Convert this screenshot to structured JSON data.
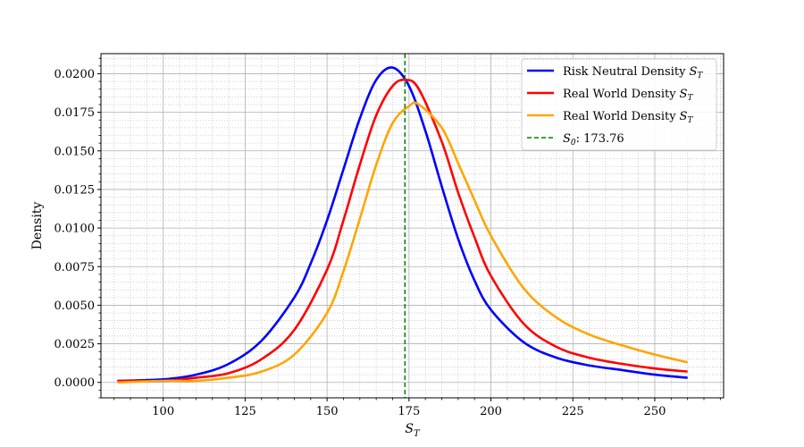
{
  "chart_data": {
    "type": "line",
    "title": "",
    "xlabel": "S",
    "xlabel_sub": "T",
    "ylabel": "Density",
    "xlim": [
      81,
      271
    ],
    "ylim": [
      -0.001,
      0.0213
    ],
    "xticks": [
      100,
      125,
      150,
      175,
      200,
      225,
      250
    ],
    "yticks": [
      0.0,
      0.0025,
      0.005,
      0.0075,
      0.01,
      0.0125,
      0.015,
      0.0175,
      0.02
    ],
    "ytick_labels": [
      "0.0000",
      "0.0025",
      "0.0050",
      "0.0075",
      "0.0100",
      "0.0125",
      "0.0150",
      "0.0175",
      "0.0200"
    ],
    "grid": true,
    "legend_position": "top-right",
    "series": [
      {
        "name": "Risk Neutral Density",
        "name_sub": "T",
        "color": "#0000ff",
        "x": [
          86,
          100,
          110,
          120,
          130,
          140,
          145,
          150,
          155,
          160,
          165,
          170,
          175,
          180,
          185,
          190,
          195,
          200,
          210,
          220,
          230,
          240,
          250,
          260
        ],
        "y": [
          0.0001,
          0.0002,
          0.0005,
          0.0012,
          0.0027,
          0.0055,
          0.0077,
          0.0105,
          0.0138,
          0.0171,
          0.0196,
          0.0204,
          0.0192,
          0.0163,
          0.0127,
          0.0093,
          0.0066,
          0.0047,
          0.0026,
          0.0016,
          0.0011,
          0.0008,
          0.0005,
          0.0003
        ]
      },
      {
        "name": "Real World Density",
        "name_sub": "T",
        "color": "#ff0000",
        "x": [
          86,
          100,
          110,
          120,
          130,
          140,
          150,
          155,
          160,
          165,
          170,
          174,
          178,
          185,
          190,
          195,
          200,
          210,
          220,
          230,
          240,
          250,
          260
        ],
        "y": [
          0.0001,
          0.0001,
          0.0003,
          0.0006,
          0.0015,
          0.0034,
          0.0073,
          0.0105,
          0.0141,
          0.0173,
          0.0192,
          0.0196,
          0.019,
          0.0156,
          0.0123,
          0.0094,
          0.0069,
          0.0038,
          0.0023,
          0.0016,
          0.0012,
          0.0009,
          0.0007
        ]
      },
      {
        "name": "Real World Density",
        "name_sub": "T",
        "color": "#ffa500",
        "x": [
          86,
          100,
          110,
          120,
          130,
          140,
          150,
          155,
          160,
          165,
          170,
          175,
          178,
          185,
          190,
          195,
          200,
          210,
          220,
          230,
          240,
          250,
          260
        ],
        "y": [
          0.0,
          0.0001,
          0.0001,
          0.0003,
          0.0007,
          0.0018,
          0.0045,
          0.0072,
          0.0106,
          0.0141,
          0.0168,
          0.0179,
          0.018,
          0.0165,
          0.0142,
          0.0118,
          0.0095,
          0.0061,
          0.0042,
          0.0031,
          0.0024,
          0.0018,
          0.0013
        ]
      }
    ],
    "vline": {
      "label": ": 173.76",
      "label_var": "S",
      "label_sub": "0",
      "x": 173.76,
      "color": "#008000",
      "style": "dashed"
    }
  }
}
